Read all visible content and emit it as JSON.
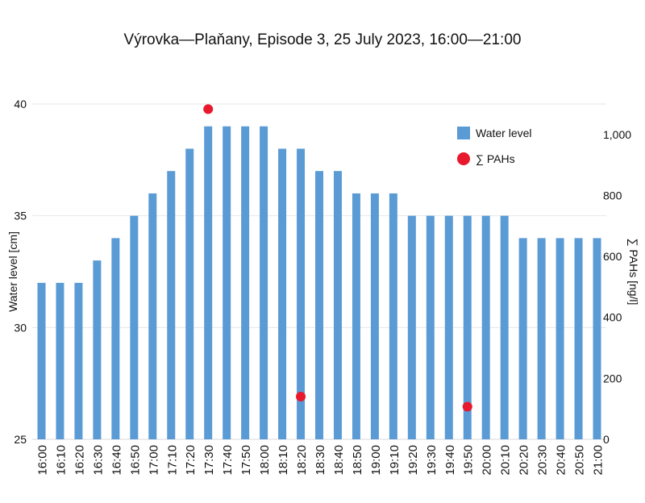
{
  "chart_data": {
    "type": "bar",
    "title": "Výrovka—Plaňany, Episode 3, 25 July 2023, 16:00—21:00",
    "xlabel": "",
    "categories": [
      "16:00",
      "16:10",
      "16:20",
      "16:30",
      "16:40",
      "16:50",
      "17:00",
      "17:10",
      "17:20",
      "17:30",
      "17:40",
      "17:50",
      "18:00",
      "18:10",
      "18:20",
      "18:30",
      "18:40",
      "18:50",
      "19:00",
      "19:10",
      "19:20",
      "19:30",
      "19:40",
      "19:50",
      "20:00",
      "20:10",
      "20:20",
      "20:30",
      "20:40",
      "20:50",
      "21:00"
    ],
    "series": [
      {
        "name": "Water level",
        "type": "bar",
        "axis": "left",
        "color": "#5b9bd5",
        "values": [
          32,
          32,
          32,
          33,
          34,
          35,
          36,
          37,
          38,
          39,
          39,
          39,
          39,
          38,
          38,
          37,
          37,
          36,
          36,
          36,
          35,
          35,
          35,
          35,
          35,
          35,
          34,
          34,
          34,
          34,
          34
        ]
      },
      {
        "name": "∑ PAHs",
        "type": "scatter",
        "axis": "right",
        "color": "#e8192c",
        "points": [
          {
            "x": "17:30",
            "y": 1083
          },
          {
            "x": "18:20",
            "y": 140
          },
          {
            "x": "19:50",
            "y": 107
          }
        ]
      }
    ],
    "y_left": {
      "label": "Water level [cm]",
      "ylim": [
        25,
        40
      ],
      "ticks": [
        25,
        30,
        35,
        40
      ],
      "tick_labels": [
        "25",
        "30",
        "35",
        "40"
      ]
    },
    "y_right": {
      "label": "∑ PAHs [ng/l]",
      "ylim": [
        0,
        1100
      ],
      "ticks": [
        0,
        200,
        400,
        600,
        800,
        1000
      ],
      "tick_labels": [
        "0",
        "200",
        "400",
        "600",
        "800",
        "1,000"
      ]
    },
    "grid": true,
    "legend": {
      "position": "top-right",
      "entries": [
        "Water level",
        "∑ PAHs"
      ]
    }
  }
}
